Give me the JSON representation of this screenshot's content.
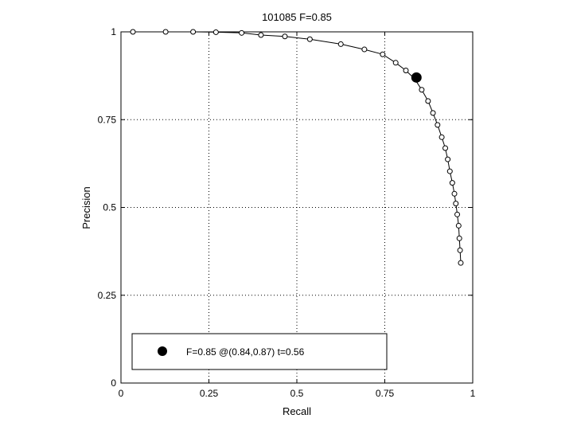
{
  "chart_data": {
    "type": "line",
    "title": "101085 F=0.85",
    "xlabel": "Recall",
    "ylabel": "Precision",
    "xlim": [
      0,
      1
    ],
    "ylim": [
      0,
      1
    ],
    "grid": true,
    "grid_style": "dotted",
    "xticks": [
      0,
      0.25,
      0.5,
      0.75,
      1
    ],
    "yticks": [
      0,
      0.25,
      0.5,
      0.75,
      1
    ],
    "xtick_labels": [
      "0",
      "0.25",
      "0.5",
      "0.75",
      "1"
    ],
    "ytick_labels": [
      "0",
      "0.25",
      "0.5",
      "0.75",
      "1"
    ],
    "series": [
      {
        "marker": "open-circle",
        "color": "#000000",
        "x": [
          0.034,
          0.127,
          0.205,
          0.27,
          0.343,
          0.398,
          0.466,
          0.537,
          0.625,
          0.692,
          0.744,
          0.781,
          0.81,
          0.835,
          0.855,
          0.873,
          0.887,
          0.9,
          0.912,
          0.922,
          0.929,
          0.935,
          0.942,
          0.948,
          0.952,
          0.956,
          0.96,
          0.962,
          0.964,
          0.966
        ],
        "y": [
          1.0,
          1.0,
          1.0,
          0.999,
          0.997,
          0.991,
          0.987,
          0.979,
          0.965,
          0.95,
          0.936,
          0.912,
          0.89,
          0.866,
          0.835,
          0.803,
          0.769,
          0.735,
          0.7,
          0.669,
          0.637,
          0.603,
          0.57,
          0.539,
          0.511,
          0.48,
          0.448,
          0.412,
          0.378,
          0.342
        ]
      }
    ],
    "best_point": {
      "x": 0.84,
      "y": 0.87,
      "color": "#000000"
    },
    "legend": {
      "placement": "bottom-left",
      "text": "F=0.85 @(0.84,0.87) t=0.56"
    }
  }
}
